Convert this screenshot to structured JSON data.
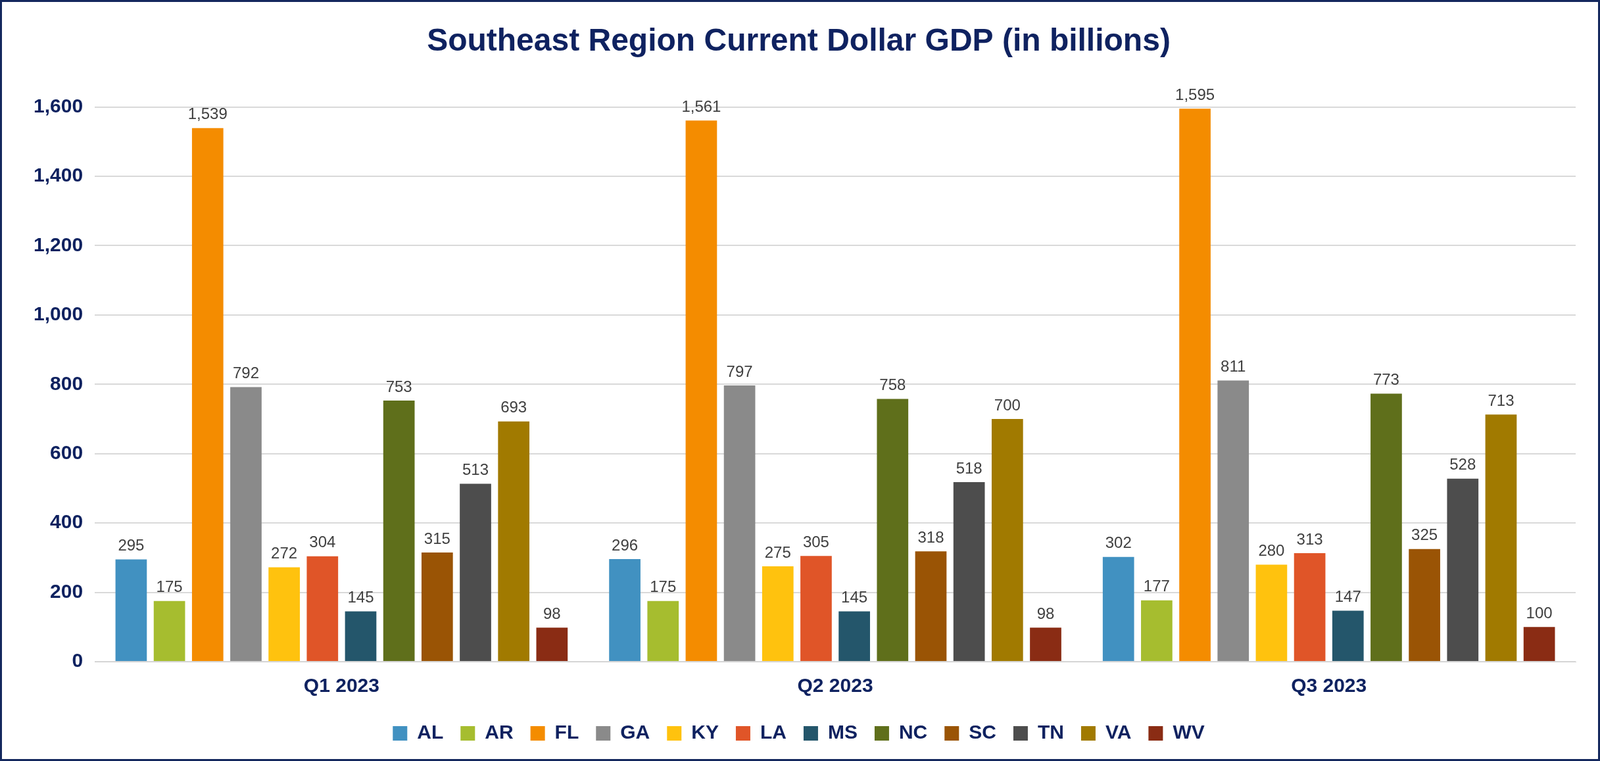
{
  "chart_data": {
    "type": "bar",
    "title": "Southeast Region Current Dollar GDP (in billions)",
    "categories": [
      "Q1 2023",
      "Q2 2023",
      "Q3 2023"
    ],
    "series": [
      {
        "name": "AL",
        "color": "#4191c1",
        "values": [
          295,
          296,
          302
        ]
      },
      {
        "name": "AR",
        "color": "#a6bd2f",
        "values": [
          175,
          175,
          177
        ]
      },
      {
        "name": "FL",
        "color": "#f48c00",
        "values": [
          1539,
          1561,
          1595
        ],
        "value_labels": [
          "1,539",
          "1,561",
          "1,595"
        ]
      },
      {
        "name": "GA",
        "color": "#8a8a8a",
        "values": [
          792,
          797,
          811
        ]
      },
      {
        "name": "KY",
        "color": "#ffc20e",
        "values": [
          272,
          275,
          280
        ]
      },
      {
        "name": "LA",
        "color": "#e05528",
        "values": [
          304,
          305,
          313
        ]
      },
      {
        "name": "MS",
        "color": "#24566b",
        "values": [
          145,
          145,
          147
        ]
      },
      {
        "name": "NC",
        "color": "#5f6f1b",
        "values": [
          753,
          758,
          773
        ]
      },
      {
        "name": "SC",
        "color": "#9a5405",
        "values": [
          315,
          318,
          325
        ]
      },
      {
        "name": "TN",
        "color": "#4d4d4d",
        "values": [
          513,
          518,
          528
        ]
      },
      {
        "name": "VA",
        "color": "#a17a00",
        "values": [
          693,
          700,
          713
        ]
      },
      {
        "name": "WV",
        "color": "#8a2c14",
        "values": [
          98,
          98,
          100
        ]
      }
    ],
    "ylim": [
      0,
      1600
    ],
    "yticks": [
      0,
      200,
      400,
      600,
      800,
      {
        "value": 1000,
        "label": "1,000"
      },
      {
        "value": 1200,
        "label": "1,200"
      },
      {
        "value": 1400,
        "label": "1,400"
      },
      {
        "value": 1600,
        "label": "1,600"
      }
    ],
    "grid": true,
    "legend": "bottom",
    "data_labels": true
  }
}
